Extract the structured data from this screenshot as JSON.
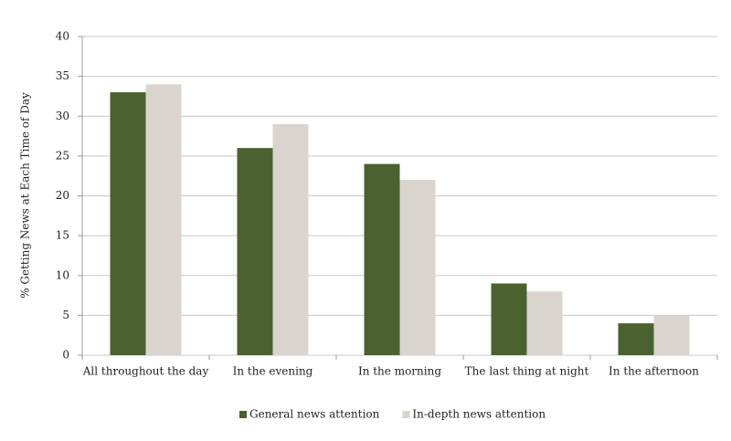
{
  "chart_data": {
    "type": "bar",
    "y_label": "% Getting News at Each Time of Day",
    "categories": [
      "All throughout the day",
      "In the evening",
      "In the morning",
      "The last thing at night",
      "In the afternoon"
    ],
    "series": [
      {
        "name": "General news attention",
        "color": "#4a6130",
        "values": [
          33,
          26,
          24,
          9,
          4
        ]
      },
      {
        "name": "In-depth news attention",
        "color": "#d9d5ce",
        "values": [
          34,
          29,
          22,
          8,
          5
        ]
      }
    ],
    "ylim": [
      0,
      40
    ],
    "yticks": [
      0,
      5,
      10,
      15,
      20,
      25,
      30,
      35,
      40
    ],
    "grid": true,
    "legend": "bottom"
  }
}
